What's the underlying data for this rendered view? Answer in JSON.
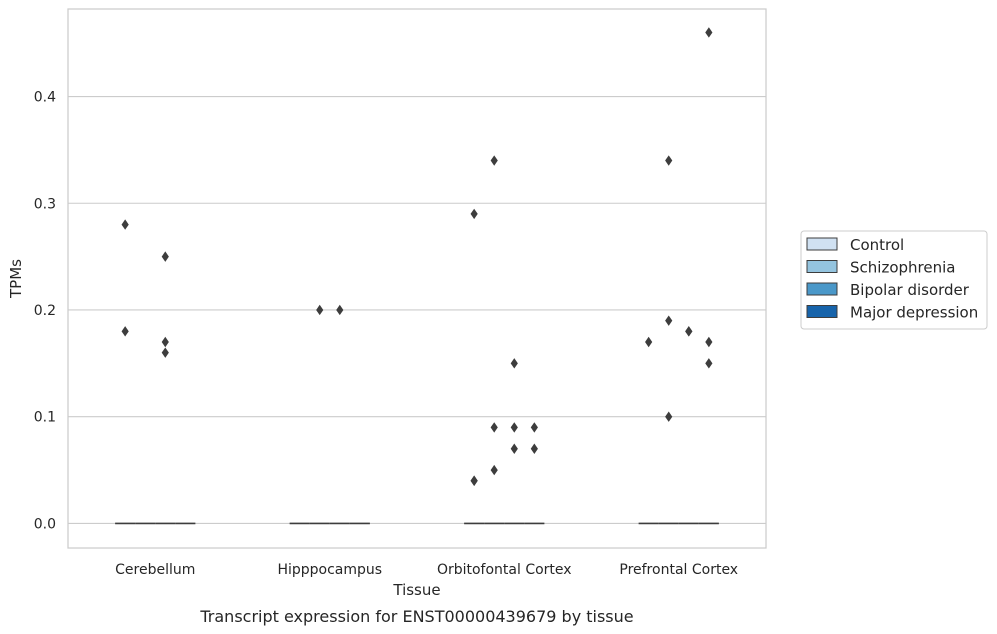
{
  "chart_data": {
    "type": "box",
    "title": "",
    "caption": "Transcript expression for ENST00000439679 by tissue",
    "xlabel": "Tissue",
    "ylabel": "TPMs",
    "ylim": [
      -0.023,
      0.482
    ],
    "yticks": [
      "0.0",
      "0.1",
      "0.2",
      "0.3",
      "0.4"
    ],
    "categories": [
      "Cerebellum",
      "Hipppocampus",
      "Orbitofontal Cortex",
      "Prefrontal Cortex"
    ],
    "grid": true,
    "legend": {
      "placement": "right",
      "entries": [
        {
          "name": "Control",
          "color": "#d0e1f2"
        },
        {
          "name": "Schizophrenia",
          "color": "#94c4df"
        },
        {
          "name": "Bipolar disorder",
          "color": "#4a98c9"
        },
        {
          "name": "Major depression",
          "color": "#1764ab"
        }
      ]
    },
    "series": [
      {
        "name": "Control",
        "median": [
          0,
          0,
          0,
          0
        ],
        "outliers": [
          [
            0.28,
            0.18
          ],
          [],
          [
            0.04,
            0.04,
            0.29
          ],
          [
            0.17
          ]
        ]
      },
      {
        "name": "Schizophrenia",
        "median": [
          0,
          0,
          0,
          0
        ],
        "outliers": [
          [],
          [
            0.2
          ],
          [
            0.34,
            0.09,
            0.05
          ],
          [
            0.34,
            0.19,
            0.1
          ]
        ]
      },
      {
        "name": "Bipolar disorder",
        "median": [
          0,
          0,
          0,
          0
        ],
        "outliers": [
          [
            0.25,
            0.17,
            0.16
          ],
          [
            0.2
          ],
          [
            0.15,
            0.09,
            0.07
          ],
          [
            0.18,
            0.18
          ]
        ]
      },
      {
        "name": "Major depression",
        "median": [
          0,
          0,
          0,
          0
        ],
        "outliers": [
          [],
          [],
          [
            0.09,
            0.07
          ],
          [
            0.46,
            0.17,
            0.15
          ]
        ]
      }
    ],
    "outlier_color": "#3d3d3d"
  }
}
